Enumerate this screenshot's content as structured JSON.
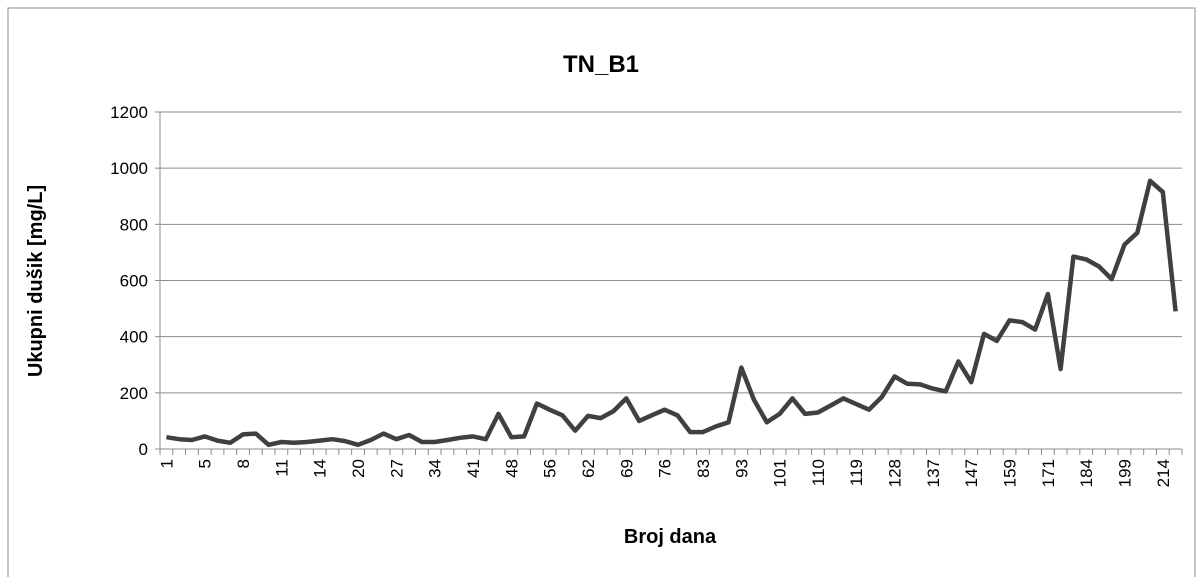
{
  "chart_data": {
    "type": "line",
    "title": "TN_B1",
    "x_label": "Broj dana",
    "y_label": "Ukupni dušik [mg/L]",
    "categories": [
      "1",
      null,
      null,
      "5",
      null,
      null,
      "8",
      null,
      null,
      "11",
      null,
      null,
      "14",
      null,
      null,
      "20",
      null,
      null,
      "27",
      null,
      null,
      "34",
      null,
      null,
      "41",
      null,
      null,
      "48",
      null,
      null,
      "56",
      null,
      null,
      "62",
      null,
      null,
      "69",
      null,
      null,
      "76",
      null,
      null,
      "83",
      null,
      null,
      "93",
      null,
      null,
      "101",
      null,
      null,
      "110",
      null,
      null,
      "119",
      null,
      null,
      "128",
      null,
      null,
      "137",
      null,
      null,
      "147",
      null,
      null,
      "159",
      null,
      null,
      "171",
      null,
      null,
      "184",
      null,
      null,
      "199",
      null,
      null,
      "214",
      null
    ],
    "series": [
      {
        "name": "TN_B1",
        "color": "#404040",
        "values": [
          42,
          35,
          32,
          45,
          30,
          22,
          52,
          55,
          15,
          25,
          22,
          25,
          30,
          35,
          28,
          15,
          32,
          55,
          35,
          50,
          25,
          25,
          32,
          40,
          45,
          35,
          125,
          42,
          45,
          162,
          140,
          120,
          65,
          118,
          110,
          135,
          180,
          100,
          120,
          140,
          120,
          60,
          60,
          80,
          95,
          290,
          175,
          95,
          125,
          180,
          125,
          130,
          155,
          180,
          160,
          140,
          185,
          258,
          232,
          230,
          215,
          205,
          312,
          238,
          410,
          385,
          458,
          452,
          425,
          552,
          285,
          685,
          675,
          650,
          605,
          728,
          770,
          955,
          915,
          490
        ]
      }
    ],
    "ylim": [
      0,
      1200
    ],
    "yticks": [
      0,
      200,
      400,
      600,
      800,
      1000,
      1200
    ],
    "grid": true
  }
}
